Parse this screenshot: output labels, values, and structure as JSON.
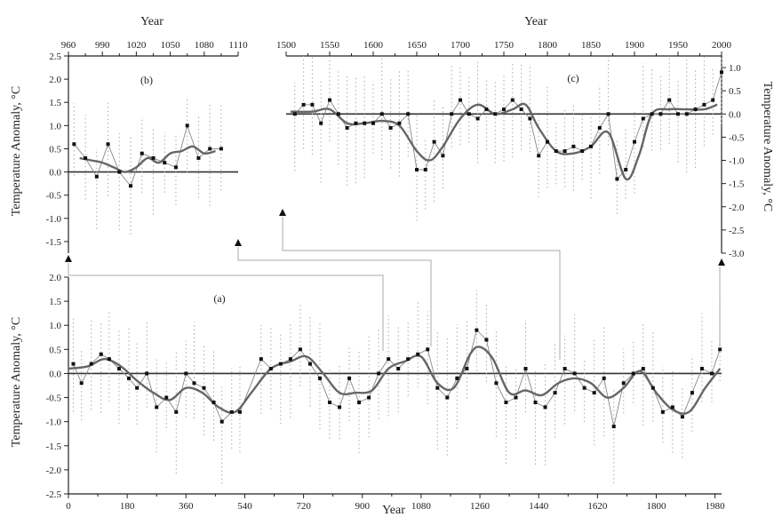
{
  "chart_data": [
    {
      "id": "a",
      "type": "line",
      "panel_label": "(a)",
      "xlabel": "Year",
      "ylabel": "Temperature Anomaly, °C",
      "xlim": [
        0,
        2000
      ],
      "ylim": [
        -2.5,
        2.0
      ],
      "xticks": [
        0,
        180,
        360,
        540,
        720,
        900,
        1080,
        1260,
        1440,
        1620,
        1800,
        1980
      ],
      "yticks": [
        -2.5,
        -2.0,
        -1.5,
        -1.0,
        -0.5,
        0.0,
        0.5,
        1.0,
        1.5,
        2.0
      ],
      "grid": false,
      "series": [
        {
          "kind": "points",
          "x": [
            15,
            40,
            70,
            100,
            125,
            155,
            185,
            210,
            240,
            270,
            300,
            330,
            360,
            385,
            415,
            445,
            470,
            500,
            525,
            590,
            620,
            650,
            680,
            710,
            740,
            770,
            800,
            830,
            860,
            890,
            920,
            950,
            980,
            1010,
            1040,
            1070,
            1100,
            1130,
            1160,
            1190,
            1220,
            1250,
            1280,
            1310,
            1340,
            1370,
            1400,
            1430,
            1460,
            1490,
            1520,
            1550,
            1580,
            1610,
            1640,
            1670,
            1700,
            1730,
            1760,
            1790,
            1820,
            1850,
            1880,
            1910,
            1940,
            1970,
            1995
          ],
          "y": [
            0.2,
            -0.2,
            0.2,
            0.4,
            0.3,
            0.1,
            -0.1,
            -0.3,
            0.0,
            -0.7,
            -0.5,
            -0.8,
            0.0,
            -0.2,
            -0.3,
            -0.6,
            -1.0,
            -0.8,
            -0.8,
            0.3,
            0.1,
            0.2,
            0.3,
            0.5,
            0.2,
            -0.1,
            -0.6,
            -0.7,
            -0.1,
            -0.6,
            -0.5,
            0.0,
            0.3,
            0.1,
            0.3,
            0.4,
            0.5,
            -0.3,
            -0.5,
            -0.1,
            0.1,
            0.9,
            0.7,
            -0.2,
            -0.6,
            -0.5,
            0.1,
            -0.6,
            -0.7,
            -0.4,
            0.1,
            0.0,
            -0.3,
            -0.4,
            -0.1,
            -1.1,
            -0.2,
            0.0,
            0.1,
            -0.3,
            -0.8,
            -0.7,
            -0.9,
            -0.4,
            0.1,
            0.0,
            0.5
          ]
        },
        {
          "kind": "smooth",
          "x": [
            0,
            60,
            110,
            160,
            210,
            260,
            310,
            360,
            410,
            460,
            510,
            560,
            620,
            680,
            730,
            780,
            830,
            880,
            930,
            980,
            1030,
            1080,
            1130,
            1180,
            1230,
            1260,
            1300,
            1350,
            1400,
            1450,
            1500,
            1550,
            1600,
            1650,
            1700,
            1750,
            1800,
            1850,
            1900,
            1950,
            1995
          ],
          "y": [
            0.1,
            0.15,
            0.3,
            0.15,
            -0.15,
            -0.4,
            -0.55,
            -0.3,
            -0.4,
            -0.7,
            -0.8,
            -0.4,
            0.1,
            0.25,
            0.35,
            0.0,
            -0.4,
            -0.4,
            -0.35,
            0.1,
            0.25,
            0.35,
            -0.2,
            -0.3,
            0.4,
            0.55,
            0.3,
            -0.4,
            -0.35,
            -0.45,
            -0.2,
            -0.1,
            -0.2,
            -0.5,
            -0.3,
            0.05,
            -0.4,
            -0.75,
            -0.8,
            -0.3,
            0.1
          ]
        }
      ]
    },
    {
      "id": "b",
      "type": "line",
      "panel_label": "(b)",
      "xlabel": "Year",
      "ylabel": "Temperature Anomaly, °C",
      "xlim": [
        960,
        1110
      ],
      "ylim": [
        -1.75,
        2.5
      ],
      "xticks": [
        960,
        990,
        1020,
        1050,
        1080,
        1110
      ],
      "yticks": [
        -1.5,
        -1.0,
        -0.5,
        0.0,
        0.5,
        1.0,
        1.5,
        2.0,
        2.5
      ],
      "grid": false,
      "series": [
        {
          "kind": "points",
          "x": [
            965,
            975,
            985,
            995,
            1005,
            1015,
            1025,
            1035,
            1045,
            1055,
            1065,
            1075,
            1085,
            1095
          ],
          "y": [
            0.6,
            0.3,
            -0.1,
            0.6,
            0.0,
            -0.3,
            0.4,
            0.3,
            0.2,
            0.1,
            1.0,
            0.3,
            0.5,
            0.5
          ]
        },
        {
          "kind": "smooth",
          "x": [
            970,
            980,
            990,
            1000,
            1010,
            1020,
            1030,
            1040,
            1050,
            1060,
            1070,
            1080,
            1090
          ],
          "y": [
            0.3,
            0.25,
            0.2,
            0.1,
            0.0,
            0.1,
            0.3,
            0.2,
            0.4,
            0.45,
            0.55,
            0.4,
            0.45
          ]
        }
      ]
    },
    {
      "id": "c",
      "type": "line",
      "panel_label": "(c)",
      "xlabel": "Year",
      "ylabel": "Temperature Anomaly, °C",
      "xlim": [
        1500,
        2000
      ],
      "ylim": [
        -3.0,
        1.25
      ],
      "xticks": [
        1500,
        1550,
        1600,
        1650,
        1700,
        1750,
        1800,
        1850,
        1900,
        1950,
        2000
      ],
      "yticks": [
        -3.0,
        -2.5,
        -2.0,
        -1.5,
        -1.0,
        -0.5,
        0.0,
        0.5,
        1.0
      ],
      "grid": false,
      "series": [
        {
          "kind": "points",
          "x": [
            1510,
            1520,
            1530,
            1540,
            1550,
            1560,
            1570,
            1580,
            1590,
            1600,
            1610,
            1620,
            1630,
            1640,
            1650,
            1660,
            1670,
            1680,
            1690,
            1700,
            1710,
            1720,
            1730,
            1740,
            1750,
            1760,
            1770,
            1780,
            1790,
            1800,
            1810,
            1820,
            1830,
            1840,
            1850,
            1860,
            1870,
            1880,
            1890,
            1900,
            1910,
            1920,
            1930,
            1940,
            1950,
            1960,
            1970,
            1980,
            1990,
            2000
          ],
          "y": [
            0.0,
            0.2,
            0.2,
            -0.2,
            0.3,
            0.0,
            -0.3,
            -0.2,
            -0.2,
            -0.2,
            0.0,
            -0.3,
            -0.2,
            0.0,
            -1.2,
            -1.2,
            -0.6,
            -0.9,
            0.0,
            0.3,
            0.0,
            -0.1,
            0.1,
            0.0,
            0.1,
            0.3,
            0.1,
            -0.1,
            -0.9,
            -0.6,
            -0.8,
            -0.8,
            -0.7,
            -0.8,
            -0.7,
            -0.3,
            0.0,
            -1.4,
            -1.2,
            -0.6,
            -0.1,
            0.0,
            0.0,
            0.3,
            0.0,
            0.0,
            0.1,
            0.2,
            0.3,
            0.9
          ]
        },
        {
          "kind": "smooth",
          "x": [
            1505,
            1530,
            1550,
            1570,
            1590,
            1610,
            1630,
            1650,
            1665,
            1680,
            1700,
            1720,
            1740,
            1760,
            1775,
            1790,
            1810,
            1830,
            1850,
            1870,
            1890,
            1905,
            1920,
            1940,
            1960,
            1980,
            1995
          ],
          "y": [
            0.05,
            0.05,
            0.1,
            -0.2,
            -0.2,
            -0.15,
            -0.25,
            -0.8,
            -1.0,
            -0.7,
            -0.1,
            0.2,
            0.0,
            0.1,
            0.2,
            -0.3,
            -0.8,
            -0.85,
            -0.7,
            -0.4,
            -1.4,
            -0.9,
            0.0,
            0.1,
            0.1,
            0.1,
            0.2
          ]
        }
      ]
    }
  ]
}
